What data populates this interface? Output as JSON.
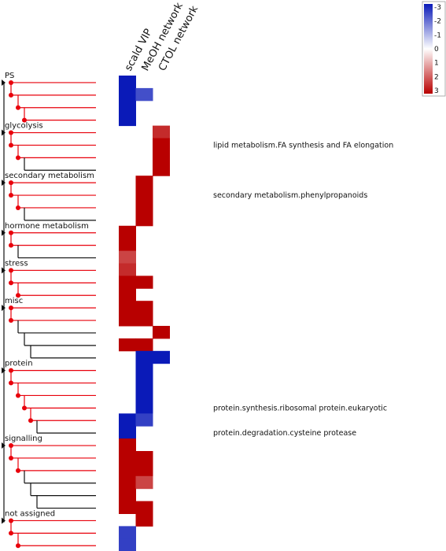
{
  "columns": [
    "scald VIP",
    "MeOH network",
    "CTOL network"
  ],
  "legend": {
    "ticks": [
      "-3",
      "-2",
      "-1",
      "0",
      "1",
      "2",
      "3"
    ],
    "colors": {
      "neg": "#0a1ab8",
      "mid": "#ffffff",
      "pos": "#b80000"
    }
  },
  "tree_colors": {
    "significant": "#e8000b",
    "other": "#111111"
  },
  "categories": [
    {
      "label": "PS",
      "start_row": 0
    },
    {
      "label": "glycolysis",
      "start_row": 4
    },
    {
      "label": "secondary metabolism",
      "start_row": 8
    },
    {
      "label": "hormone metabolism",
      "start_row": 12
    },
    {
      "label": "stress",
      "start_row": 15
    },
    {
      "label": "misc",
      "start_row": 18
    },
    {
      "label": "protein",
      "start_row": 23
    },
    {
      "label": "signalling",
      "start_row": 29
    },
    {
      "label": "not assigned",
      "start_row": 35
    }
  ],
  "annotations": [
    {
      "text": "lipid metabolism.FA synthesis and FA elongation",
      "row": 5
    },
    {
      "text": "secondary metabolism.phenylpropanoids",
      "row": 9
    },
    {
      "text": "protein.synthesis.ribosomal protein.eukaryotic",
      "row": 26
    },
    {
      "text": "protein.degradation.cysteine protease",
      "row": 28
    }
  ],
  "chart_data": {
    "type": "heatmap",
    "columns": [
      "scald VIP",
      "MeOH network",
      "CTOL network"
    ],
    "range": [
      -3,
      3
    ],
    "rows": [
      [
        -3,
        null,
        null
      ],
      [
        -3,
        -2.3,
        null
      ],
      [
        -3,
        null,
        null
      ],
      [
        -3,
        null,
        null
      ],
      [
        null,
        null,
        2.5
      ],
      [
        null,
        null,
        3
      ],
      [
        null,
        null,
        3
      ],
      [
        null,
        null,
        3
      ],
      [
        null,
        3,
        null
      ],
      [
        null,
        3,
        null
      ],
      [
        null,
        3,
        null
      ],
      [
        null,
        3,
        null
      ],
      [
        3,
        null,
        null
      ],
      [
        3,
        null,
        null
      ],
      [
        2.2,
        null,
        null
      ],
      [
        2.5,
        null,
        null
      ],
      [
        3,
        3,
        null
      ],
      [
        3,
        null,
        null
      ],
      [
        3,
        3,
        null
      ],
      [
        3,
        3,
        null
      ],
      [
        null,
        null,
        3
      ],
      [
        3,
        3,
        null
      ],
      [
        null,
        -3,
        -3
      ],
      [
        null,
        -3,
        null
      ],
      [
        null,
        -3,
        null
      ],
      [
        null,
        -3,
        null
      ],
      [
        null,
        -3,
        null
      ],
      [
        -3,
        -2.5,
        null
      ],
      [
        -3,
        null,
        null
      ],
      [
        3,
        null,
        null
      ],
      [
        3,
        3,
        null
      ],
      [
        3,
        3,
        null
      ],
      [
        3,
        2.2,
        null
      ],
      [
        3,
        null,
        null
      ],
      [
        3,
        3,
        null
      ],
      [
        null,
        3,
        null
      ],
      [
        -2.5,
        null,
        null
      ],
      [
        -2.5,
        null,
        null
      ]
    ]
  }
}
